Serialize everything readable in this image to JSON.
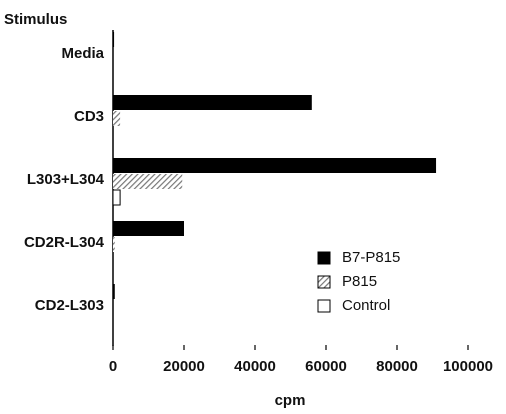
{
  "chart_data": {
    "type": "hbar",
    "y_title": "Stimulus",
    "x_title": "cpm",
    "categories": [
      "Media",
      "CD3",
      "L303+L304",
      "CD2R-L304",
      "CD2-L303"
    ],
    "series": [
      {
        "name": "B7-P815",
        "color": "#000000",
        "values": [
          300,
          56000,
          91000,
          20000,
          500
        ]
      },
      {
        "name": "P815",
        "color": "#777777",
        "values": [
          0,
          2000,
          19500,
          500,
          0
        ]
      },
      {
        "name": "Control",
        "color": "#ffffff",
        "values": [
          0,
          0,
          2000,
          0,
          0
        ]
      }
    ],
    "xlim": [
      0,
      100000
    ],
    "xticks": [
      0,
      20000,
      40000,
      60000,
      80000,
      100000
    ]
  }
}
